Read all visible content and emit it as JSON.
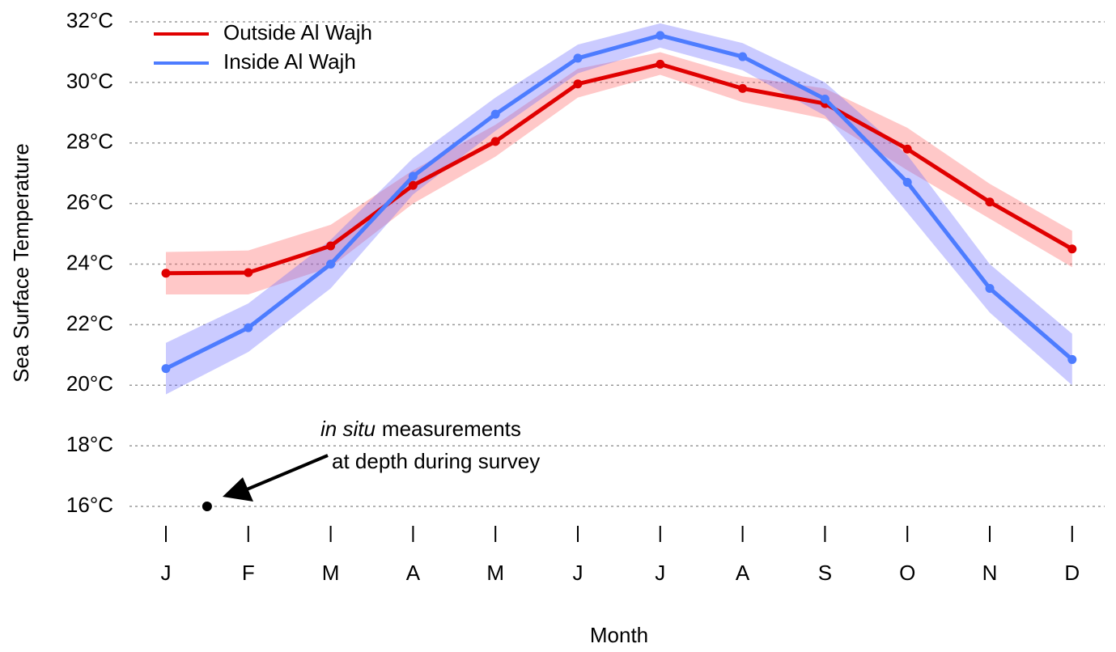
{
  "chart_data": {
    "type": "line",
    "x_label": "Month",
    "y_label": "Sea Surface Temperature",
    "categories": [
      "J",
      "F",
      "M",
      "A",
      "M",
      "J",
      "J",
      "A",
      "S",
      "O",
      "N",
      "D"
    ],
    "series": [
      {
        "name": "Outside Al Wajh",
        "color": "#e00000",
        "band_color": "#ff6060",
        "values": [
          23.7,
          23.72,
          24.6,
          26.6,
          28.05,
          29.95,
          30.6,
          29.8,
          29.3,
          27.8,
          26.05,
          24.5
        ],
        "lower": [
          23.0,
          23.0,
          23.9,
          26.0,
          27.55,
          29.5,
          30.25,
          29.35,
          28.8,
          27.1,
          25.5,
          23.9
        ],
        "upper": [
          24.4,
          24.45,
          25.3,
          27.1,
          28.6,
          30.45,
          31.0,
          30.2,
          29.8,
          28.5,
          26.65,
          25.1
        ]
      },
      {
        "name": "Inside Al Wajh",
        "color": "#4d7cff",
        "band_color": "#6a6aff",
        "values": [
          20.55,
          21.9,
          24.0,
          26.9,
          28.95,
          30.8,
          31.55,
          30.85,
          29.45,
          26.7,
          23.2,
          20.85
        ],
        "lower": [
          19.7,
          21.1,
          23.2,
          26.3,
          28.4,
          30.3,
          31.15,
          30.4,
          28.9,
          25.7,
          22.4,
          20.0
        ],
        "upper": [
          21.4,
          22.7,
          24.8,
          27.5,
          29.5,
          31.25,
          31.95,
          31.3,
          30.0,
          27.6,
          24.0,
          21.7
        ]
      }
    ],
    "ylim": [
      16,
      32
    ],
    "yticks": [
      {
        "value": 16,
        "label": "16°C"
      },
      {
        "value": 18,
        "label": "18°C"
      },
      {
        "value": 20,
        "label": "20°C"
      },
      {
        "value": 22,
        "label": "22°C"
      },
      {
        "value": 24,
        "label": "24°C"
      },
      {
        "value": 26,
        "label": "26°C"
      },
      {
        "value": 28,
        "label": "28°C"
      },
      {
        "value": 30,
        "label": "30°C"
      },
      {
        "value": 32,
        "label": "32°C"
      }
    ],
    "grid": true,
    "legend": "upper left",
    "annotation": {
      "x": 0.5,
      "y": 16,
      "text_italic": "in situ",
      "text": "measurements",
      "text2": "at depth during survey"
    }
  }
}
